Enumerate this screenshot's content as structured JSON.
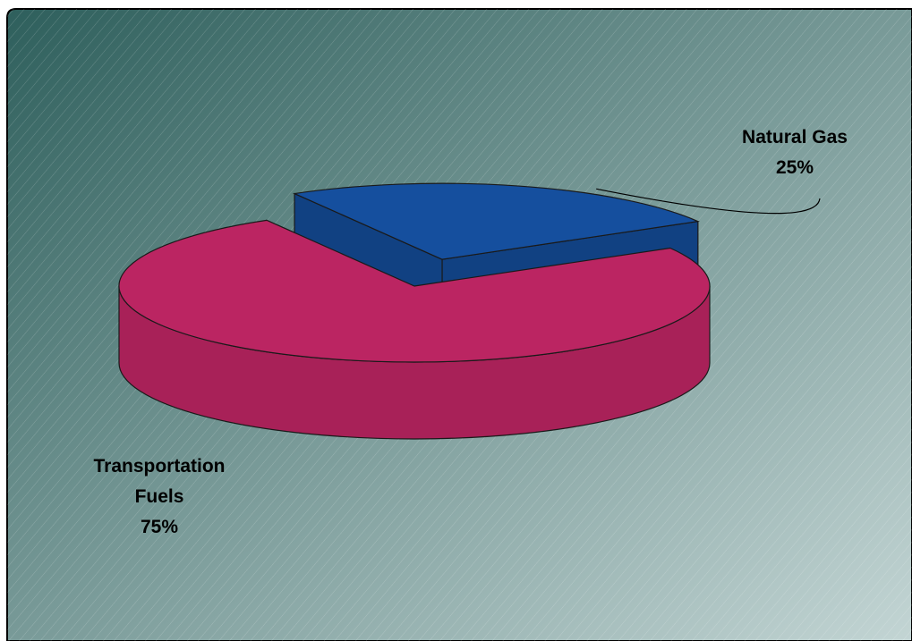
{
  "chart_data": {
    "type": "pie",
    "style": "3d-exploded",
    "title": "",
    "slices": [
      {
        "name": "Transportation Fuels",
        "value": 75,
        "value_label": "75%",
        "color": "#BB2562"
      },
      {
        "name": "Natural Gas",
        "value": 25,
        "value_label": "25%",
        "color": "#154F9E"
      }
    ],
    "legend": "none",
    "background": {
      "gradient_from": "#2E5F5C",
      "gradient_to": "#C3D5D4",
      "pattern": "diagonal-hatch",
      "border": "#000000"
    }
  }
}
